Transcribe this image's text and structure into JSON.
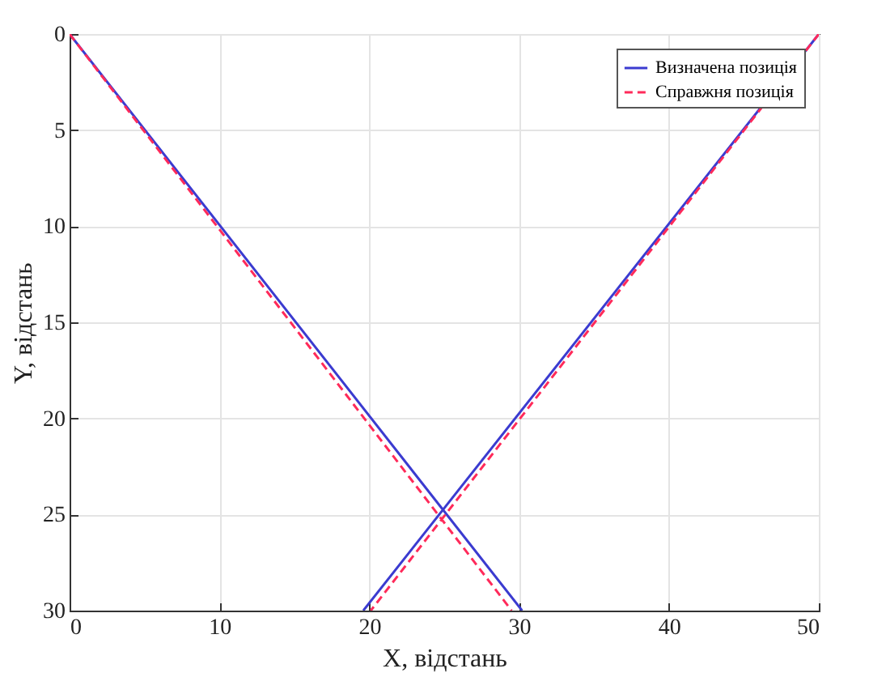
{
  "chart_data": {
    "type": "line",
    "xlabel": "X, відстань",
    "ylabel": "Y, відстань",
    "xlim": [
      0,
      50
    ],
    "ylim": [
      30,
      0
    ],
    "xticks": [
      0,
      10,
      20,
      30,
      40,
      50
    ],
    "yticks": [
      0,
      5,
      10,
      15,
      20,
      25,
      30
    ],
    "grid": true,
    "legend": "top right",
    "series": [
      {
        "name": "Визначена позиція",
        "color": "#3b3bd0",
        "line_style": "solid",
        "x": [
          0,
          30.2,
          null,
          50,
          19.6
        ],
        "values": [
          0,
          30,
          null,
          0,
          30
        ]
      },
      {
        "name": "Справжня позиція",
        "color": "#ff2a5a",
        "line_style": "dashed",
        "x": [
          0,
          29.5,
          null,
          50,
          20.1
        ],
        "values": [
          0,
          30,
          null,
          0,
          30
        ]
      }
    ]
  }
}
